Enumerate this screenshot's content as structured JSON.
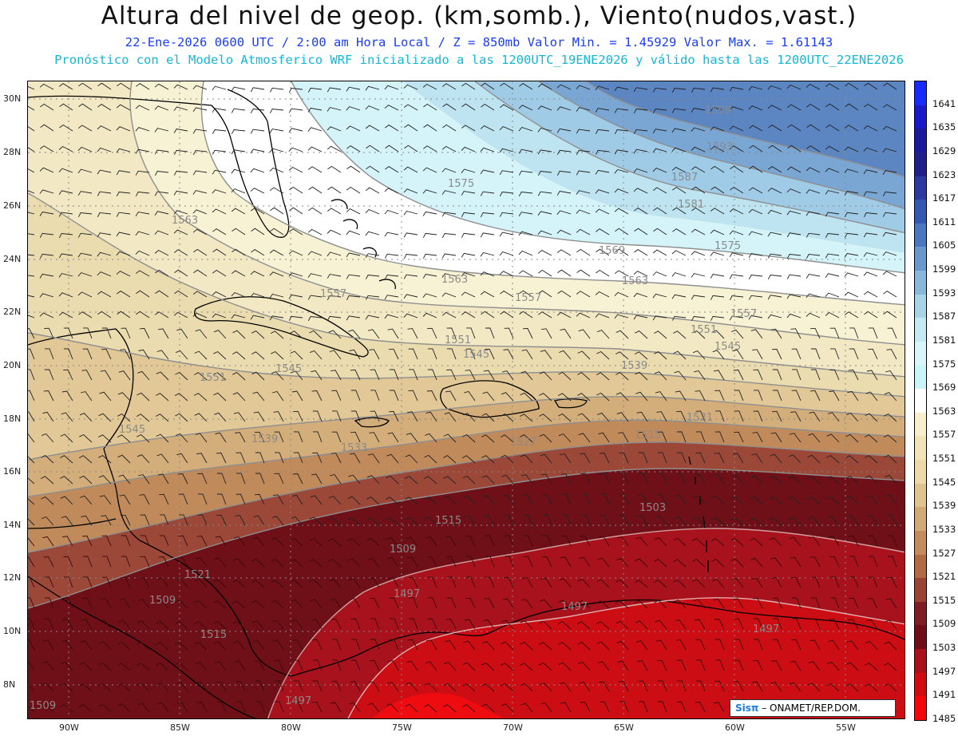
{
  "header": {
    "title": "Altura del nivel de geop. (km,somb.), Viento(nudos,vast.)",
    "subtitle_line1": "22-Ene-2026  0600 UTC / 2:00 am Hora Local / Z = 850mb    Valor Min. = 1.45929  Valor Max. = 1.61143",
    "subtitle_line2": "Pronóstico con el Modelo Atmosferico WRF inicializado a las 1200UTC_19ENE2026 y válido hasta las  1200UTC_22ENE2026"
  },
  "map": {
    "lat_labels": [
      "30N",
      "28N",
      "26N",
      "24N",
      "22N",
      "20N",
      "18N",
      "16N",
      "14N",
      "12N",
      "10N",
      "8N"
    ],
    "lon_labels": [
      "90W",
      "85W",
      "80W",
      "75W",
      "70W",
      "65W",
      "60W",
      "55W"
    ],
    "contour_labels": [
      "1599",
      "1593",
      "1587",
      "1581",
      "1575",
      "1575",
      "1569",
      "1563",
      "1563",
      "1563",
      "1557",
      "1557",
      "1557",
      "1551",
      "1551",
      "1551",
      "1545",
      "1545",
      "1545",
      "1545",
      "1539",
      "1539",
      "1533",
      "1527",
      "1521",
      "1521",
      "1515",
      "1515",
      "1515",
      "1509",
      "1509",
      "1509",
      "1503",
      "1497",
      "1497",
      "1497",
      "1497"
    ]
  },
  "colorbar": {
    "levels": [
      "1641",
      "1635",
      "1629",
      "1623",
      "1617",
      "1611",
      "1605",
      "1599",
      "1593",
      "1587",
      "1581",
      "1575",
      "1569",
      "1563",
      "1557",
      "1551",
      "1545",
      "1539",
      "1533",
      "1527",
      "1521",
      "1515",
      "1509",
      "1503",
      "1497",
      "1491",
      "1485"
    ],
    "colors": [
      "#1a2aff",
      "#1a1ac8",
      "#1a1a9a",
      "#20208a",
      "#2a3aa0",
      "#3458b0",
      "#4a78c0",
      "#6a98cc",
      "#8ab8da",
      "#a8d4e8",
      "#c4eaf4",
      "#d8f6fa",
      "#c8f4fa",
      "#ffffff",
      "#f8f0cc",
      "#f0e4b8",
      "#ecd8a8",
      "#e0c490",
      "#d2aa76",
      "#c48c5c",
      "#b06a44",
      "#9a4436",
      "#7c1e24",
      "#6e0f18",
      "#a8101a",
      "#d00c12",
      "#f2080c"
    ]
  },
  "footer": {
    "brand": "Sisπ",
    "org": " – ONAMET/REP.DOM."
  }
}
